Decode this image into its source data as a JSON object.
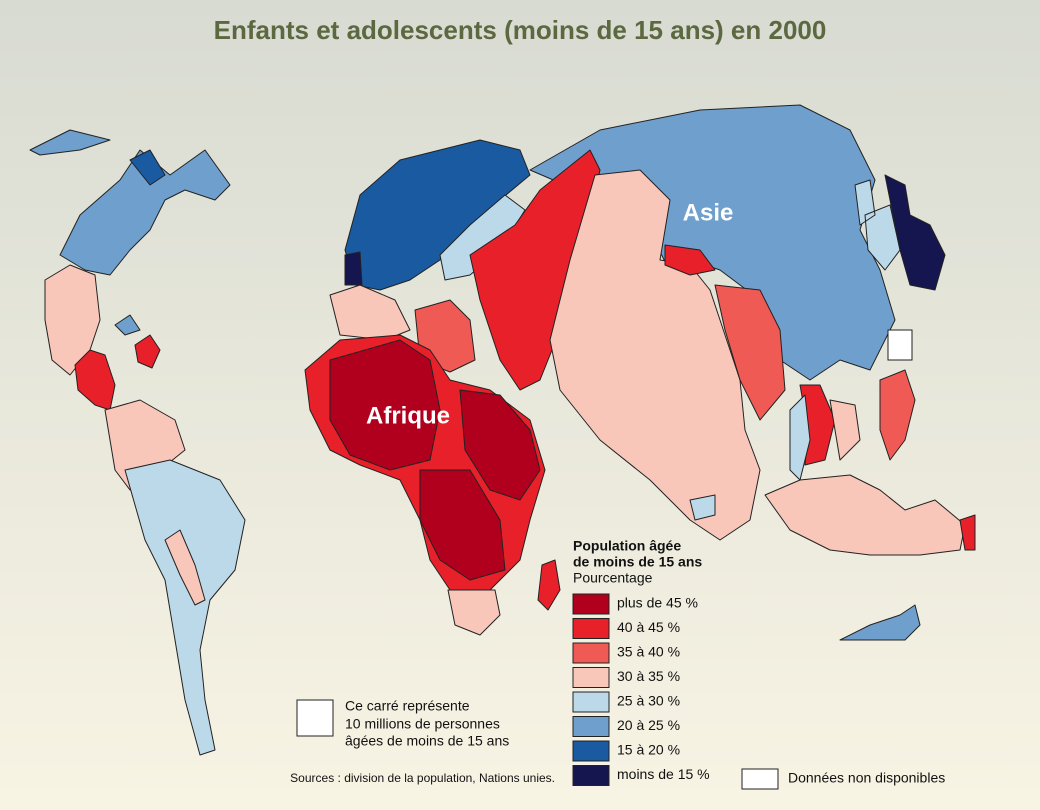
{
  "title": "Enfants et adolescents (moins de 15 ans) en 2000",
  "map_labels": [
    "Asie",
    "Afrique"
  ],
  "legend": {
    "title_lines": [
      "Population âgée",
      "de moins de 15 ans"
    ],
    "subtitle": "Pourcentage",
    "items": [
      {
        "label": "plus de 45 %",
        "color": "#b0001e"
      },
      {
        "label": "40 à 45 %",
        "color": "#e8202a"
      },
      {
        "label": "35 à 40 %",
        "color": "#f05a55"
      },
      {
        "label": "30 à 35 %",
        "color": "#f9c6ba"
      },
      {
        "label": "25 à 30 %",
        "color": "#bcd9ea"
      },
      {
        "label": "20 à 25 %",
        "color": "#6f9fcc"
      },
      {
        "label": "15 à 20 %",
        "color": "#1a5aa0"
      },
      {
        "label": "moins de 15 %",
        "color": "#15154f"
      }
    ],
    "no_data": "Données non disponibles"
  },
  "scale_note": [
    "Ce carré représente",
    "10 millions de personnes",
    "âgées de moins de 15 ans"
  ],
  "source": "Sources : division de la population, Nations unies."
}
